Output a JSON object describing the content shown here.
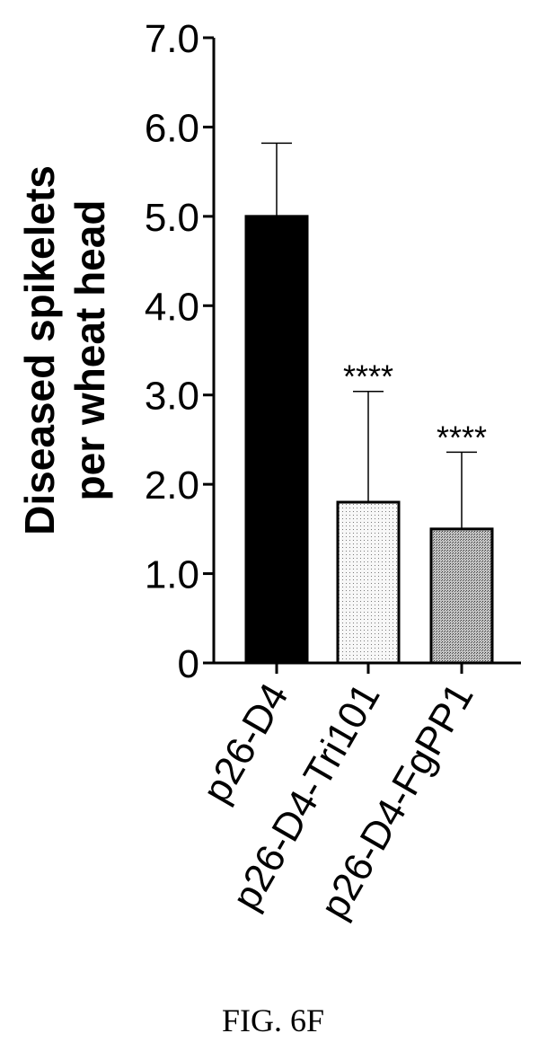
{
  "chart_data": {
    "type": "bar",
    "ylabel": [
      "Diseased spikelets",
      "per wheat head"
    ],
    "categories": [
      "p26-D4",
      "p26-D4-Tri101",
      "p26-D4-FgPP1"
    ],
    "values": [
      5.0,
      1.8,
      1.5
    ],
    "error_upper": [
      5.82,
      3.04,
      2.36
    ],
    "significance": [
      "",
      "****",
      "****"
    ],
    "bar_colors": [
      "#000000",
      "#efefef",
      "#9a9a9a"
    ],
    "bar_patterns": [
      "solid",
      "light-stipple",
      "dark-stipple"
    ],
    "ylim": [
      0,
      7.0
    ],
    "yticks": [
      0,
      1.0,
      2.0,
      3.0,
      4.0,
      5.0,
      6.0,
      7.0
    ],
    "ytick_labels": [
      "0",
      "1.0",
      "2.0",
      "3.0",
      "4.0",
      "5.0",
      "6.0",
      "7.0"
    ],
    "grid": false,
    "legend": false
  },
  "caption": "FIG. 6F"
}
